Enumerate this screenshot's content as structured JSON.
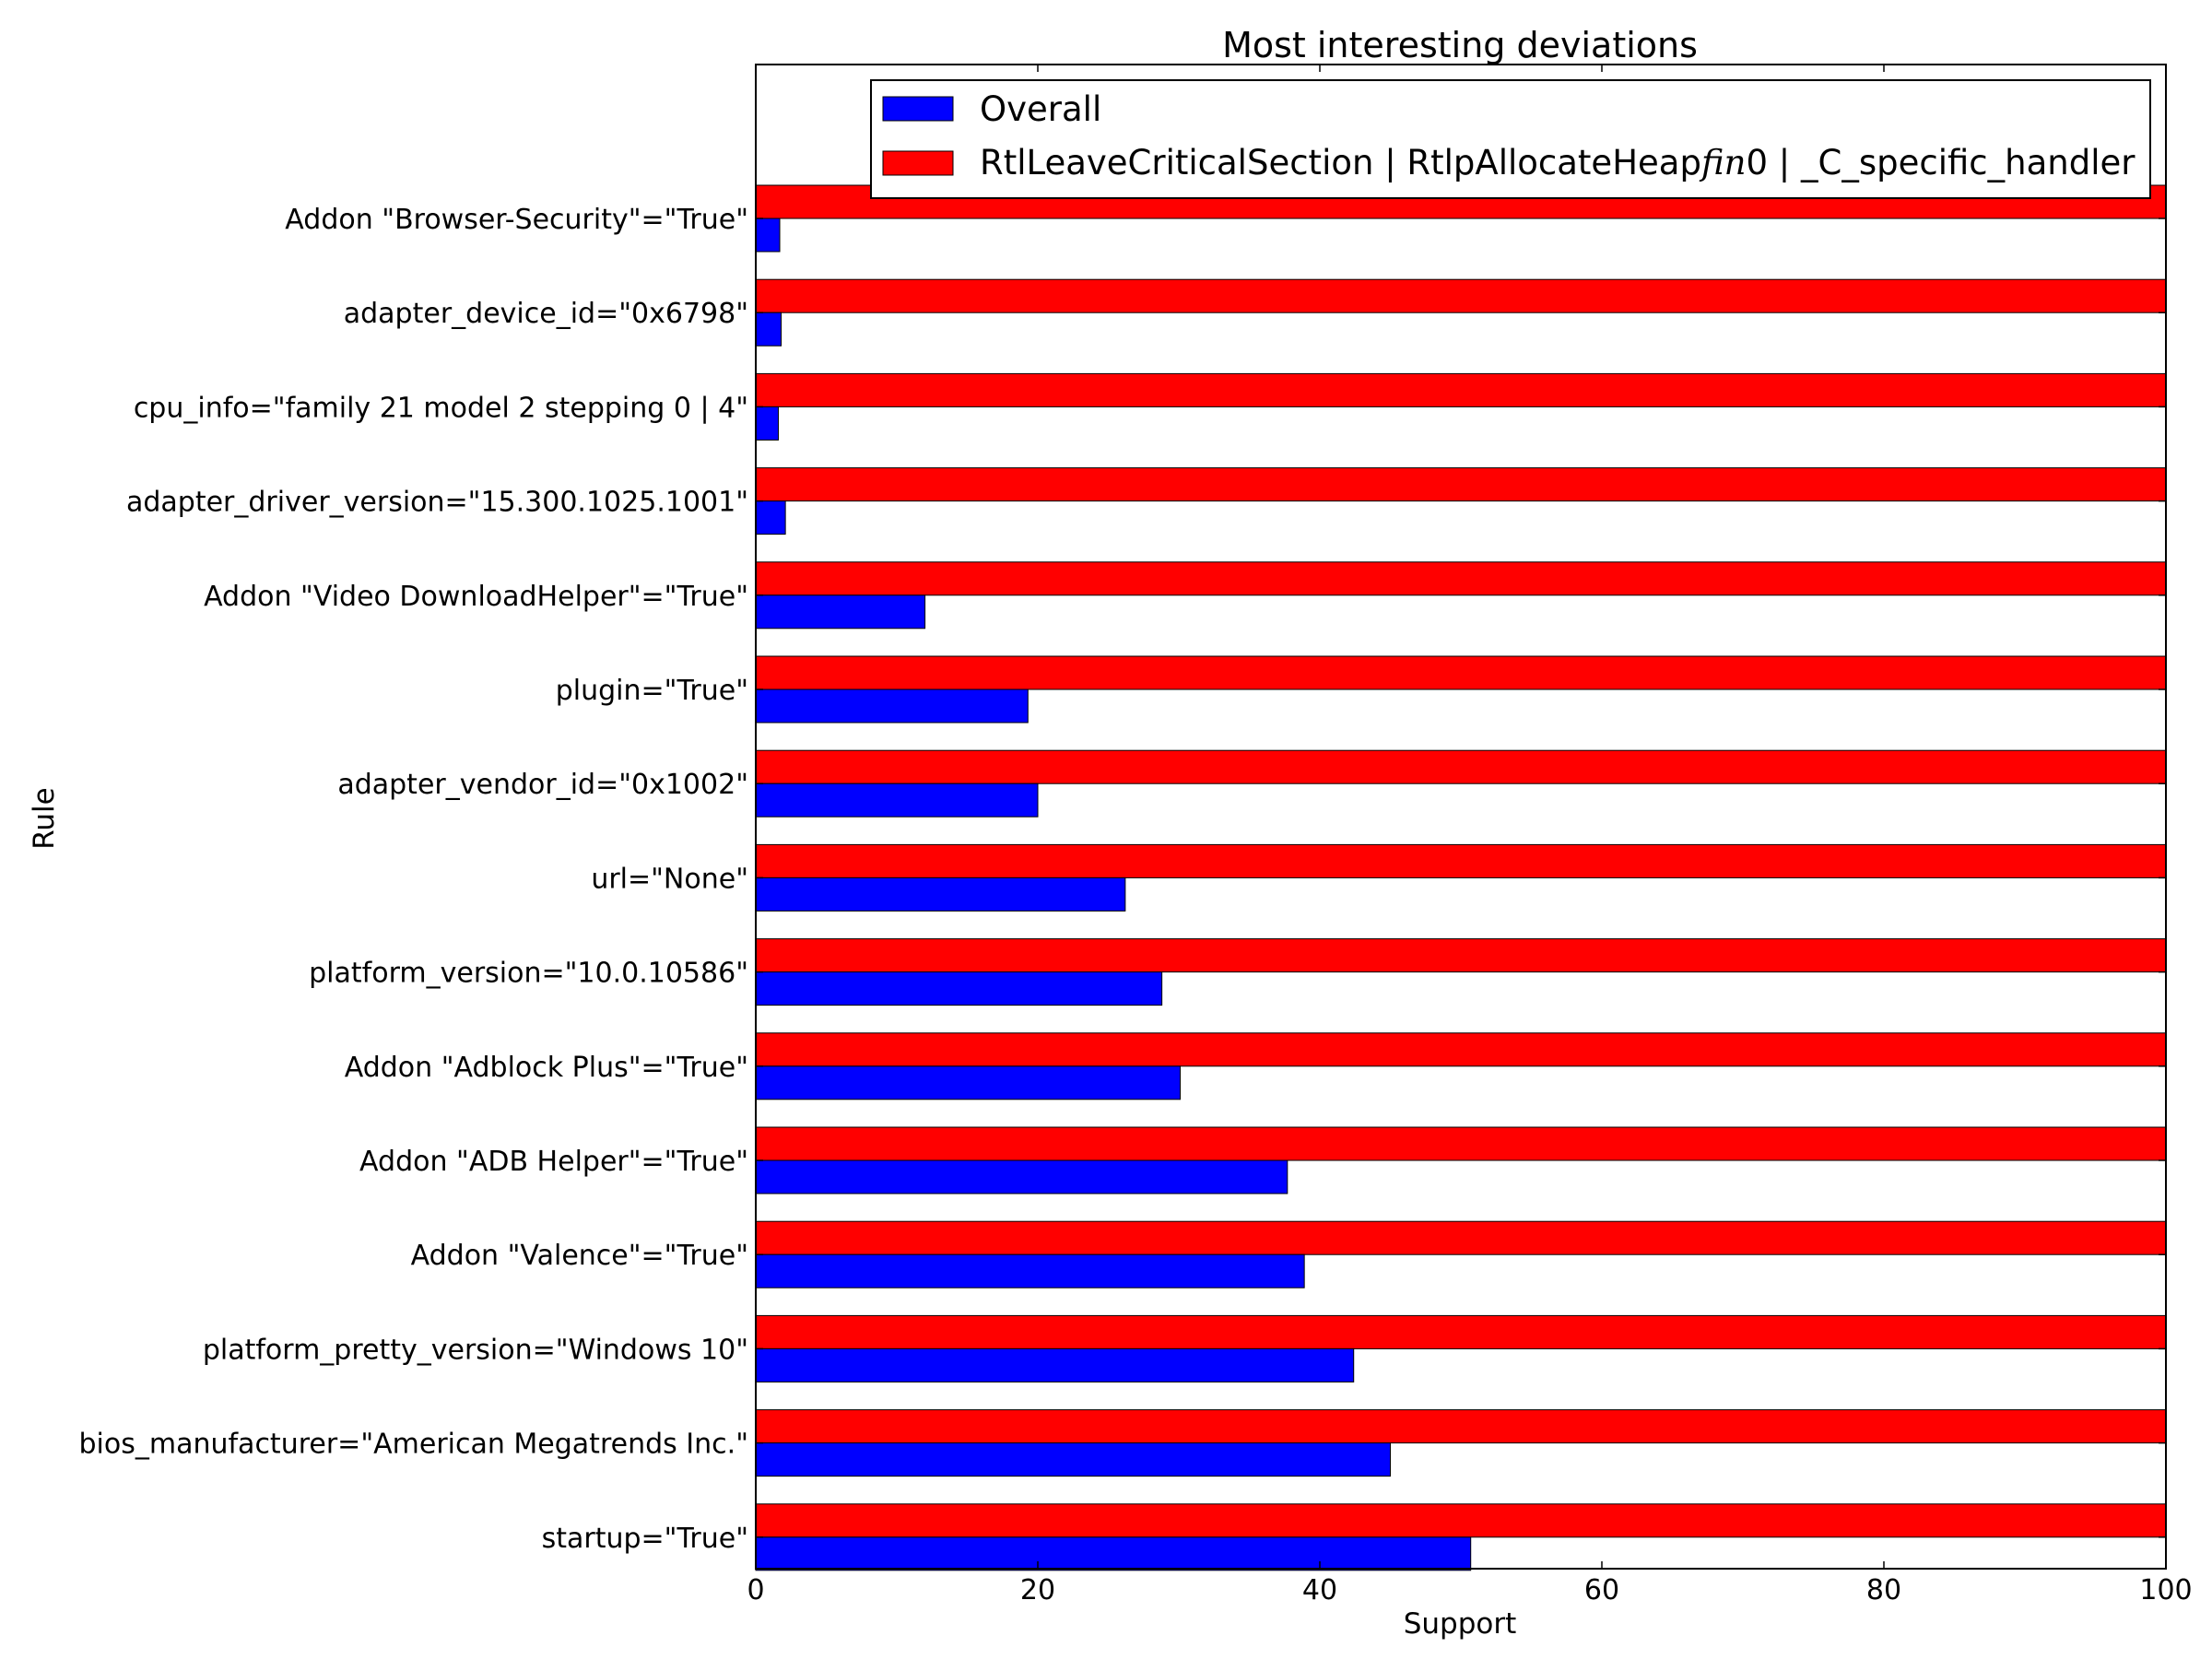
{
  "chart_data": {
    "type": "bar",
    "orientation": "horizontal",
    "title": "Most interesting deviations",
    "xlabel": "Support",
    "ylabel": "Rule",
    "xlim": [
      0,
      100
    ],
    "xticks": [
      0,
      20,
      40,
      60,
      80,
      100
    ],
    "grid": false,
    "legend_position": "top-right",
    "categories": [
      "Addon \"Browser-Security\"=\"True\"",
      "adapter_device_id=\"0x6798\"",
      "cpu_info=\"family 21 model 2 stepping 0 | 4\"",
      "adapter_driver_version=\"15.300.1025.1001\"",
      "Addon \"Video DownloadHelper\"=\"True\"",
      "plugin=\"True\"",
      "adapter_vendor_id=\"0x1002\"",
      "url=\"None\"",
      "platform_version=\"10.0.10586\"",
      "Addon \"Adblock Plus\"=\"True\"",
      "Addon \"ADB Helper\"=\"True\"",
      "Addon \"Valence\"=\"True\"",
      "platform_pretty_version=\"Windows 10\"",
      "bios_manufacturer=\"American Megatrends Inc.\"",
      "startup=\"True\""
    ],
    "series": [
      {
        "name": "Overall",
        "color": "#0000ff",
        "values": [
          1.7,
          1.8,
          1.6,
          2.1,
          12.0,
          19.3,
          20.0,
          26.2,
          28.8,
          30.1,
          37.7,
          38.9,
          42.4,
          45.0,
          50.7
        ]
      },
      {
        "name": "RtlLeaveCriticalSection | RtlpAllocateHeap",
        "name_italic": "fin",
        "name_suffix": "0 | _C_specific_handler",
        "color": "#ff0000",
        "values": [
          100,
          100,
          100,
          100,
          100,
          100,
          100,
          100,
          100,
          100,
          100,
          100,
          100,
          100,
          100
        ]
      }
    ]
  }
}
